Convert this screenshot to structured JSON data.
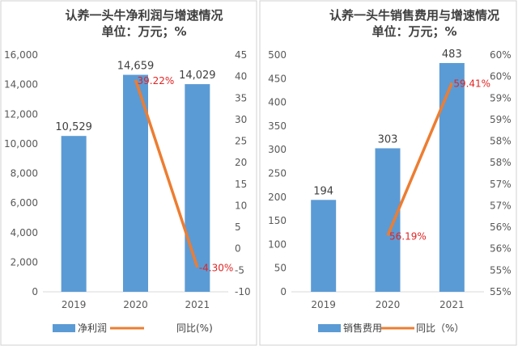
{
  "charts": [
    {
      "title_line1": "认养一头牛净利润与增速情况",
      "title_line2": "单位：万元；%",
      "legend_bar": "净利润",
      "legend_line": "同比(%)",
      "colors": {
        "bar": "#5b9bd5",
        "line": "#ed7d31",
        "label": "#e02424"
      }
    },
    {
      "title_line1": "认养一头牛销售费用与增速情况",
      "title_line2": "单位：万元；%",
      "legend_bar": "销售费用",
      "legend_line": "同比（%）",
      "colors": {
        "bar": "#5b9bd5",
        "line": "#ed7d31",
        "label": "#e02424"
      }
    }
  ],
  "chart_data": [
    {
      "type": "bar",
      "categories": [
        "2019",
        "2020",
        "2021"
      ],
      "series": [
        {
          "name": "净利润",
          "type": "bar",
          "axis": "left",
          "values": [
            10529,
            14659,
            14029
          ],
          "labels": [
            "10,529",
            "14,659",
            "14,029"
          ]
        },
        {
          "name": "同比(%)",
          "type": "line",
          "axis": "right",
          "values": [
            null,
            39.22,
            -4.3
          ],
          "labels": [
            null,
            "39.22%",
            "-4.30%"
          ]
        }
      ],
      "title": "认养一头牛净利润与增速情况",
      "subtitle": "单位：万元；%",
      "ylim_left": [
        0,
        16000
      ],
      "yticks_left": [
        "0",
        "2,000",
        "4,000",
        "6,000",
        "8,000",
        "10,000",
        "12,000",
        "14,000",
        "16,000"
      ],
      "ylim_right": [
        -10,
        45
      ],
      "yticks_right": [
        "-10",
        "-5",
        "0",
        "5",
        "10",
        "15",
        "20",
        "25",
        "30",
        "35",
        "40",
        "45"
      ],
      "grid": false,
      "legend": "bottom"
    },
    {
      "type": "bar",
      "categories": [
        "2019",
        "2020",
        "2021"
      ],
      "series": [
        {
          "name": "销售费用",
          "type": "bar",
          "axis": "left",
          "values": [
            194,
            303,
            483
          ],
          "labels": [
            "194",
            "303",
            "483"
          ]
        },
        {
          "name": "同比（%）",
          "type": "line",
          "axis": "right",
          "values": [
            null,
            56.19,
            59.41
          ],
          "labels": [
            null,
            "56.19%",
            "59.41%"
          ]
        }
      ],
      "title": "认养一头牛销售费用与增速情况",
      "subtitle": "单位：万元；%",
      "ylim_left": [
        0,
        500
      ],
      "yticks_left": [
        "0",
        "50",
        "100",
        "150",
        "200",
        "250",
        "300",
        "350",
        "400",
        "450",
        "500"
      ],
      "ylim_right": [
        55,
        60
      ],
      "yticks_right": [
        "55%",
        "55%",
        "56%",
        "56%",
        "57%",
        "57%",
        "58%",
        "58%",
        "59%",
        "59%",
        "60%",
        "60%"
      ],
      "grid": false,
      "legend": "bottom"
    }
  ]
}
